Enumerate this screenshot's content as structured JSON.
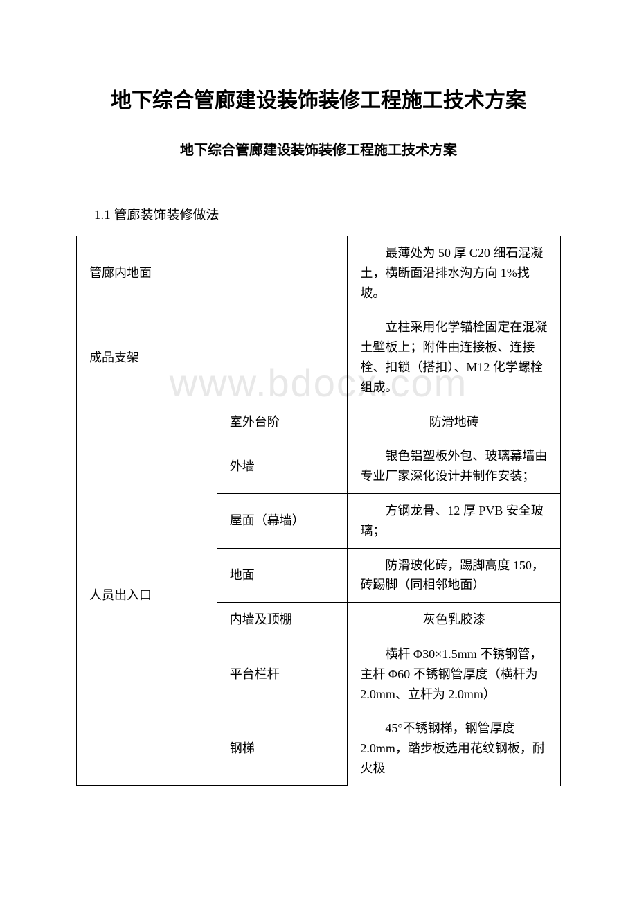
{
  "watermark_text": "www.bdocx.com",
  "main_title": "地下综合管廊建设装饰装修工程施工技术方案",
  "sub_title": "地下综合管廊建设装饰装修工程施工技术方案",
  "section_heading": "1.1 管廊装饰装修做法",
  "table": {
    "background_color": "#ffffff",
    "border_color": "#000000",
    "font_size": 18,
    "rows": [
      {
        "item_label": "管廊内地面",
        "sub_items": [
          {
            "sub_label": "",
            "description": "　　最薄处为 50 厚 C20 细石混凝土，横断面沿排水沟方向 1%找坡。"
          }
        ]
      },
      {
        "item_label": "成品支架",
        "sub_items": [
          {
            "sub_label": "",
            "description": "　　立柱采用化学锚栓固定在混凝土壁板上；附件由连接板、连接栓、扣锁（搭扣）、M12 化学螺栓组成。"
          }
        ]
      },
      {
        "item_label": "人员出入口",
        "sub_items": [
          {
            "sub_label": "室外台阶",
            "description": "防滑地砖"
          },
          {
            "sub_label": "外墙",
            "description": "　　银色铝塑板外包、玻璃幕墙由专业厂家深化设计并制作安装；"
          },
          {
            "sub_label": "屋面（幕墙）",
            "description": "　　方钢龙骨、12 厚 PVB 安全玻璃；"
          },
          {
            "sub_label": "地面",
            "description": "　　防滑玻化砖，踢脚高度 150，砖踢脚（同相邻地面）"
          },
          {
            "sub_label": "内墙及顶棚",
            "description": "灰色乳胶漆"
          },
          {
            "sub_label": "平台栏杆",
            "description": "　　横杆 Φ30×1.5mm 不锈钢管，主杆 Φ60 不锈钢管厚度（横杆为 2.0mm、立杆为 2.0mm）"
          },
          {
            "sub_label": "钢梯",
            "description": "　　45°不锈钢梯，钢管厚度 2.0mm，踏步板选用花纹钢板，耐火极"
          }
        ]
      }
    ]
  }
}
